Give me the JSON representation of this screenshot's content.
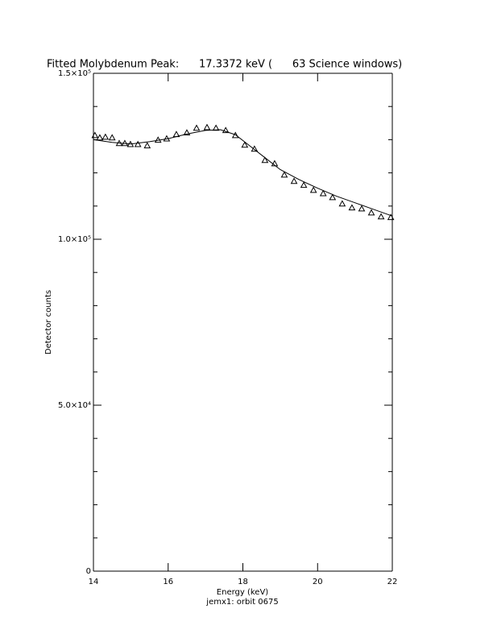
{
  "chart_data": {
    "type": "scatter",
    "title": "Fitted Molybdenum Peak:      17.3372 keV (      63 Science windows)",
    "x_label": "Energy (keV)",
    "subtitle": "jemx1: orbit 0675",
    "y_label": "Detector counts",
    "xlim": [
      14,
      22
    ],
    "xticks": [
      14,
      16,
      18,
      20,
      22
    ],
    "ylim": [
      0,
      150000
    ],
    "yticks": [
      0,
      {
        "value": 50000,
        "label": "5.0×10⁴"
      },
      {
        "value": 100000,
        "label": "1.0×10⁵"
      },
      {
        "value": 150000,
        "label": "1.5×10⁵"
      }
    ],
    "y_minor_ticks": [
      10000,
      20000,
      30000,
      40000,
      60000,
      70000,
      80000,
      90000,
      110000,
      120000,
      130000,
      140000
    ],
    "color": "#000000",
    "series": [
      {
        "style": "markers",
        "marker": "triangle",
        "x": [
          14.04,
          14.17,
          14.32,
          14.5,
          14.69,
          14.84,
          14.99,
          15.19,
          15.44,
          15.73,
          15.96,
          16.22,
          16.5,
          16.76,
          17.04,
          17.28,
          17.54,
          17.8,
          18.05,
          18.31,
          18.59,
          18.85,
          19.11,
          19.37,
          19.63,
          19.89,
          20.15,
          20.4,
          20.66,
          20.92,
          21.18,
          21.44,
          21.7,
          21.96
        ],
        "values": [
          131300,
          130600,
          130800,
          130600,
          128900,
          128900,
          128600,
          128600,
          128200,
          129900,
          130300,
          131600,
          132100,
          133500,
          133700,
          133500,
          132800,
          131300,
          128400,
          127200,
          123800,
          122800,
          119400,
          117500,
          116300,
          114800,
          113800,
          112600,
          110700,
          109500,
          109200,
          108000,
          106800,
          106600
        ]
      },
      {
        "style": "line",
        "x": [
          14,
          14.5,
          15,
          15.5,
          16,
          16.5,
          17,
          17.4,
          17.8,
          18.2,
          18.6,
          19,
          19.5,
          20,
          20.5,
          21,
          21.5,
          22
        ],
        "values": [
          130000,
          129200,
          128700,
          129400,
          130300,
          131700,
          132800,
          133000,
          131500,
          128000,
          124500,
          121000,
          118000,
          115400,
          113000,
          111000,
          109000,
          107000
        ]
      }
    ]
  }
}
